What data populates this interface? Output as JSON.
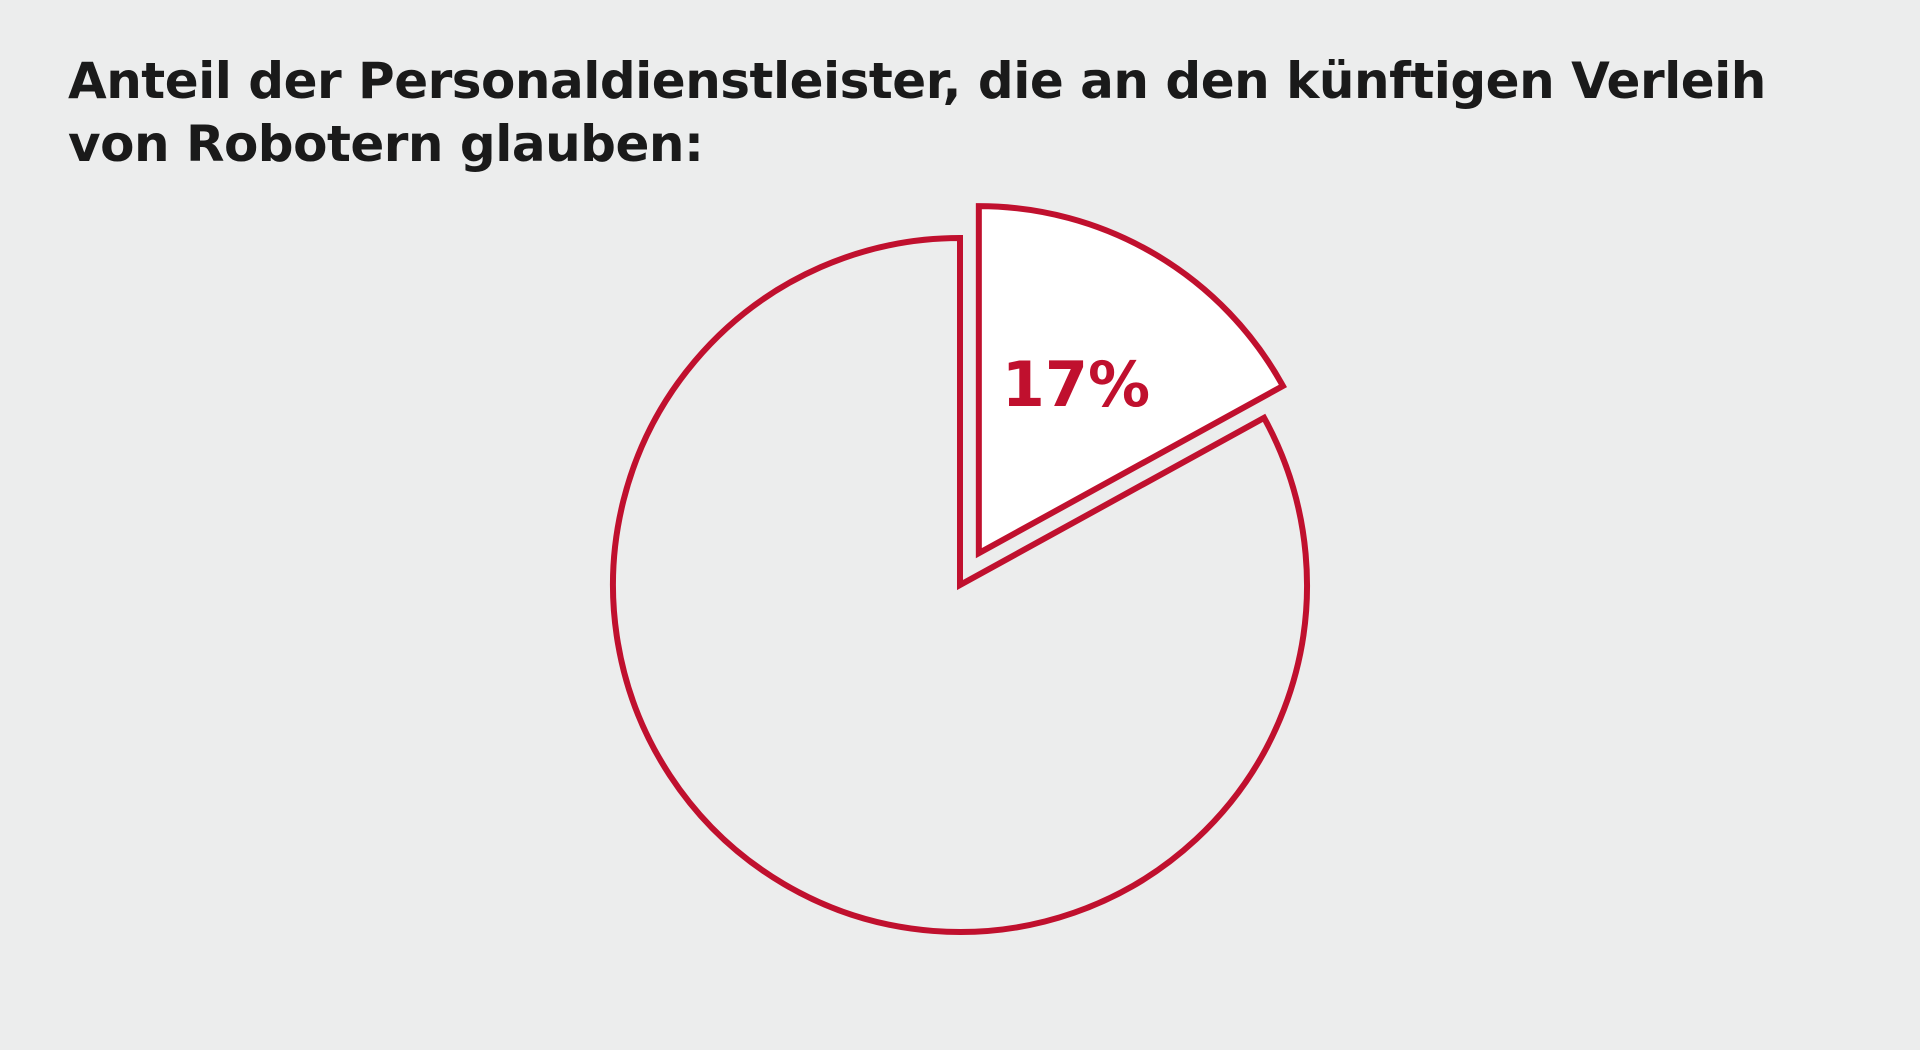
{
  "title_lines": [
    "Anteil der Personaldienstleister, die an den künftigen Verleih",
    "von Robotern glauben:"
  ],
  "colors": {
    "background": "#eceded",
    "accent": "#c0102e",
    "highlight_fill": "#ffffff",
    "title_text": "#1a1a1a"
  },
  "chart_data": {
    "type": "pie",
    "title": "Anteil der Personaldienstleister, die an den künftigen Verleih von Robotern glauben:",
    "slices": [
      {
        "value": 17,
        "label": "17%",
        "highlighted": true
      },
      {
        "value": 83,
        "label": "",
        "highlighted": false
      }
    ],
    "legend": "none"
  }
}
